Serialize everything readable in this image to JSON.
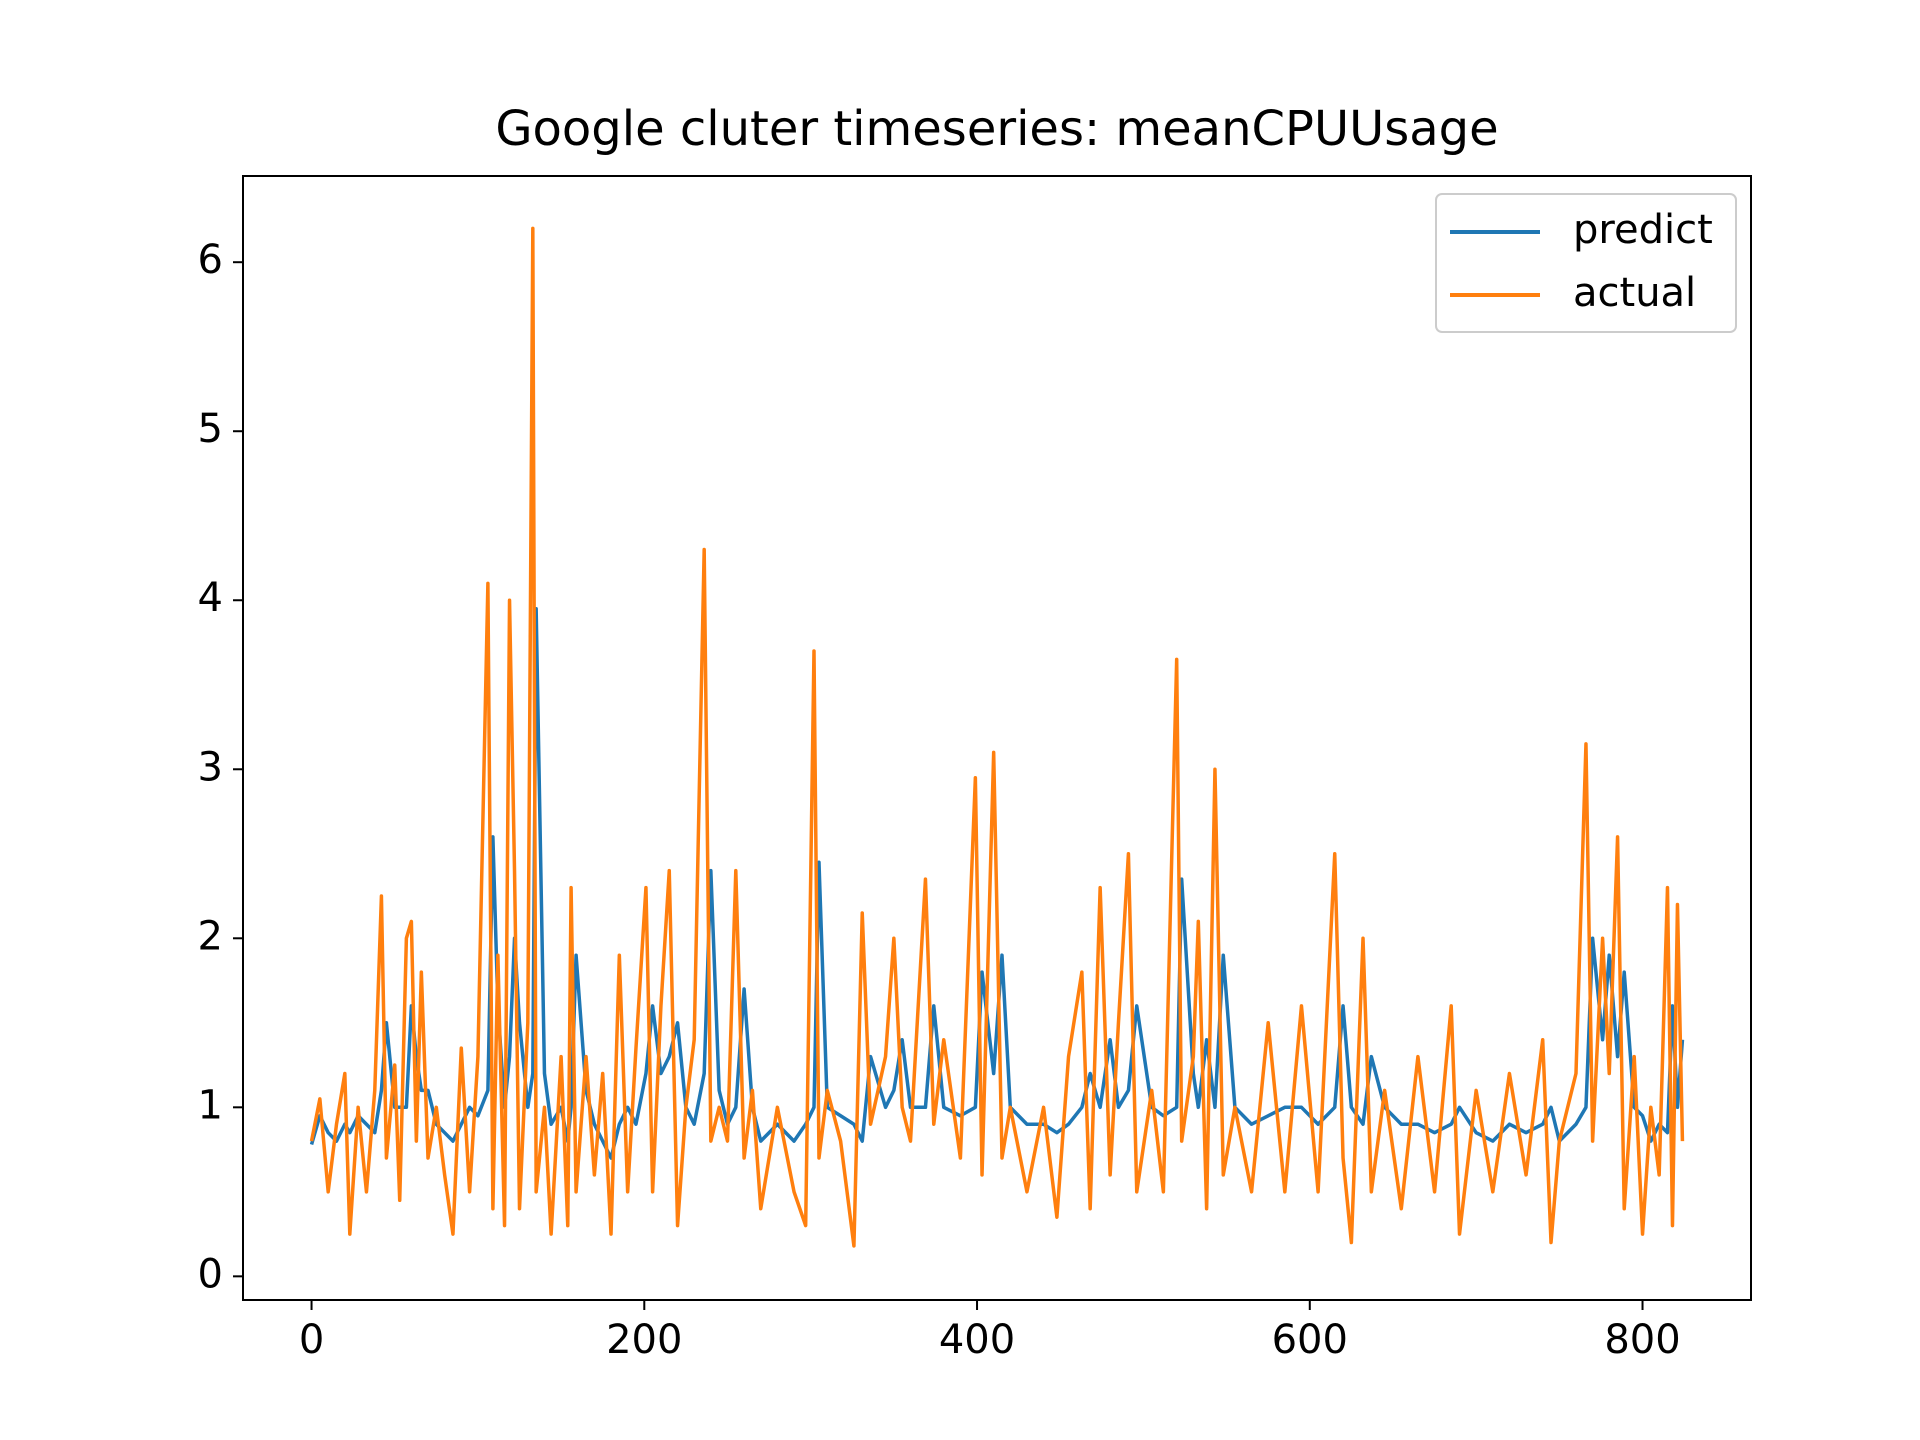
{
  "chart_data": {
    "type": "line",
    "title": "Google cluter timeseries: meanCPUUsage",
    "x": [
      0,
      5,
      10,
      15,
      20,
      23,
      28,
      33,
      38,
      42,
      45,
      50,
      53,
      57,
      60,
      63,
      66,
      70,
      75,
      80,
      85,
      90,
      95,
      100,
      106,
      109,
      112,
      116,
      119,
      122,
      125,
      130,
      133,
      135,
      140,
      144,
      150,
      154,
      156,
      159,
      165,
      170,
      175,
      180,
      185,
      190,
      195,
      201,
      205,
      210,
      215,
      220,
      225,
      230,
      236,
      240,
      245,
      250,
      255,
      260,
      265,
      270,
      280,
      290,
      297,
      302,
      305,
      310,
      318,
      326,
      331,
      336,
      345,
      350,
      355,
      360,
      369,
      374,
      380,
      390,
      399,
      403,
      410,
      415,
      420,
      430,
      440,
      448,
      455,
      463,
      468,
      474,
      480,
      485,
      491,
      496,
      505,
      512,
      520,
      523,
      530,
      533,
      538,
      543,
      548,
      555,
      565,
      575,
      585,
      595,
      605,
      615,
      620,
      625,
      632,
      637,
      645,
      655,
      665,
      675,
      685,
      690,
      700,
      710,
      720,
      730,
      740,
      745,
      750,
      760,
      766,
      770,
      776,
      780,
      785,
      789,
      795,
      800,
      805,
      810,
      815,
      818,
      821,
      824
    ],
    "series": [
      {
        "name": "predict",
        "color": "#1f77b4",
        "values": [
          0.78,
          0.95,
          0.85,
          0.8,
          0.9,
          0.85,
          0.95,
          0.9,
          0.85,
          1.1,
          1.5,
          1.0,
          1.0,
          1.0,
          1.6,
          1.3,
          1.1,
          1.1,
          0.9,
          0.85,
          0.8,
          0.9,
          1.0,
          0.95,
          1.1,
          2.6,
          1.6,
          1.0,
          1.3,
          2.0,
          1.5,
          1.0,
          1.2,
          3.95,
          1.2,
          0.9,
          1.0,
          0.8,
          1.0,
          1.9,
          1.1,
          0.9,
          0.8,
          0.7,
          0.9,
          1.0,
          0.9,
          1.2,
          1.6,
          1.2,
          1.3,
          1.5,
          1.0,
          0.9,
          1.2,
          2.4,
          1.1,
          0.9,
          1.0,
          1.7,
          1.0,
          0.8,
          0.9,
          0.8,
          0.9,
          1.0,
          2.45,
          1.0,
          0.95,
          0.9,
          0.8,
          1.3,
          1.0,
          1.1,
          1.4,
          1.0,
          1.0,
          1.6,
          1.0,
          0.95,
          1.0,
          1.8,
          1.2,
          1.9,
          1.0,
          0.9,
          0.9,
          0.85,
          0.9,
          1.0,
          1.2,
          1.0,
          1.4,
          1.0,
          1.1,
          1.6,
          1.0,
          0.95,
          1.0,
          2.35,
          1.2,
          1.0,
          1.4,
          1.0,
          1.9,
          1.0,
          0.9,
          0.95,
          1.0,
          1.0,
          0.9,
          1.0,
          1.6,
          1.0,
          0.9,
          1.3,
          1.0,
          0.9,
          0.9,
          0.85,
          0.9,
          1.0,
          0.85,
          0.8,
          0.9,
          0.85,
          0.9,
          1.0,
          0.8,
          0.9,
          1.0,
          2.0,
          1.4,
          1.9,
          1.3,
          1.8,
          1.0,
          0.95,
          0.8,
          0.9,
          0.85,
          1.6,
          1.0,
          1.4
        ]
      },
      {
        "name": "actual",
        "color": "#ff7f0e",
        "values": [
          0.8,
          1.05,
          0.5,
          0.9,
          1.2,
          0.25,
          1.0,
          0.5,
          1.1,
          2.25,
          0.7,
          1.25,
          0.45,
          2.0,
          2.1,
          0.8,
          1.8,
          0.7,
          1.0,
          0.6,
          0.25,
          1.35,
          0.5,
          1.3,
          4.1,
          0.4,
          1.9,
          0.3,
          4.0,
          2.4,
          0.4,
          1.5,
          6.2,
          0.5,
          1.0,
          0.25,
          1.3,
          0.3,
          2.3,
          0.5,
          1.3,
          0.6,
          1.2,
          0.25,
          1.9,
          0.5,
          1.35,
          2.3,
          0.5,
          1.6,
          2.4,
          0.3,
          1.0,
          1.4,
          4.3,
          0.8,
          1.0,
          0.8,
          2.4,
          0.7,
          1.1,
          0.4,
          1.0,
          0.5,
          0.3,
          3.7,
          0.7,
          1.1,
          0.8,
          0.18,
          2.15,
          0.9,
          1.3,
          2.0,
          1.0,
          0.8,
          2.35,
          0.9,
          1.4,
          0.7,
          2.95,
          0.6,
          3.1,
          0.7,
          1.0,
          0.5,
          1.0,
          0.35,
          1.3,
          1.8,
          0.4,
          2.3,
          0.6,
          1.5,
          2.5,
          0.5,
          1.1,
          0.5,
          3.65,
          0.8,
          1.3,
          2.1,
          0.4,
          3.0,
          0.6,
          1.0,
          0.5,
          1.5,
          0.5,
          1.6,
          0.5,
          2.5,
          0.7,
          0.2,
          2.0,
          0.5,
          1.1,
          0.4,
          1.3,
          0.5,
          1.6,
          0.25,
          1.1,
          0.5,
          1.2,
          0.6,
          1.4,
          0.2,
          0.8,
          1.2,
          3.15,
          0.8,
          2.0,
          1.2,
          2.6,
          0.4,
          1.3,
          0.25,
          1.0,
          0.6,
          2.3,
          0.3,
          2.2,
          0.8
        ]
      }
    ],
    "xlim": [
      -41.2,
      865.2
    ],
    "ylim": [
      -0.14,
      6.51
    ],
    "xticks": [
      0,
      200,
      400,
      600,
      800
    ],
    "yticks": [
      0,
      1,
      2,
      3,
      4,
      5,
      6
    ],
    "legend": "upper right"
  }
}
